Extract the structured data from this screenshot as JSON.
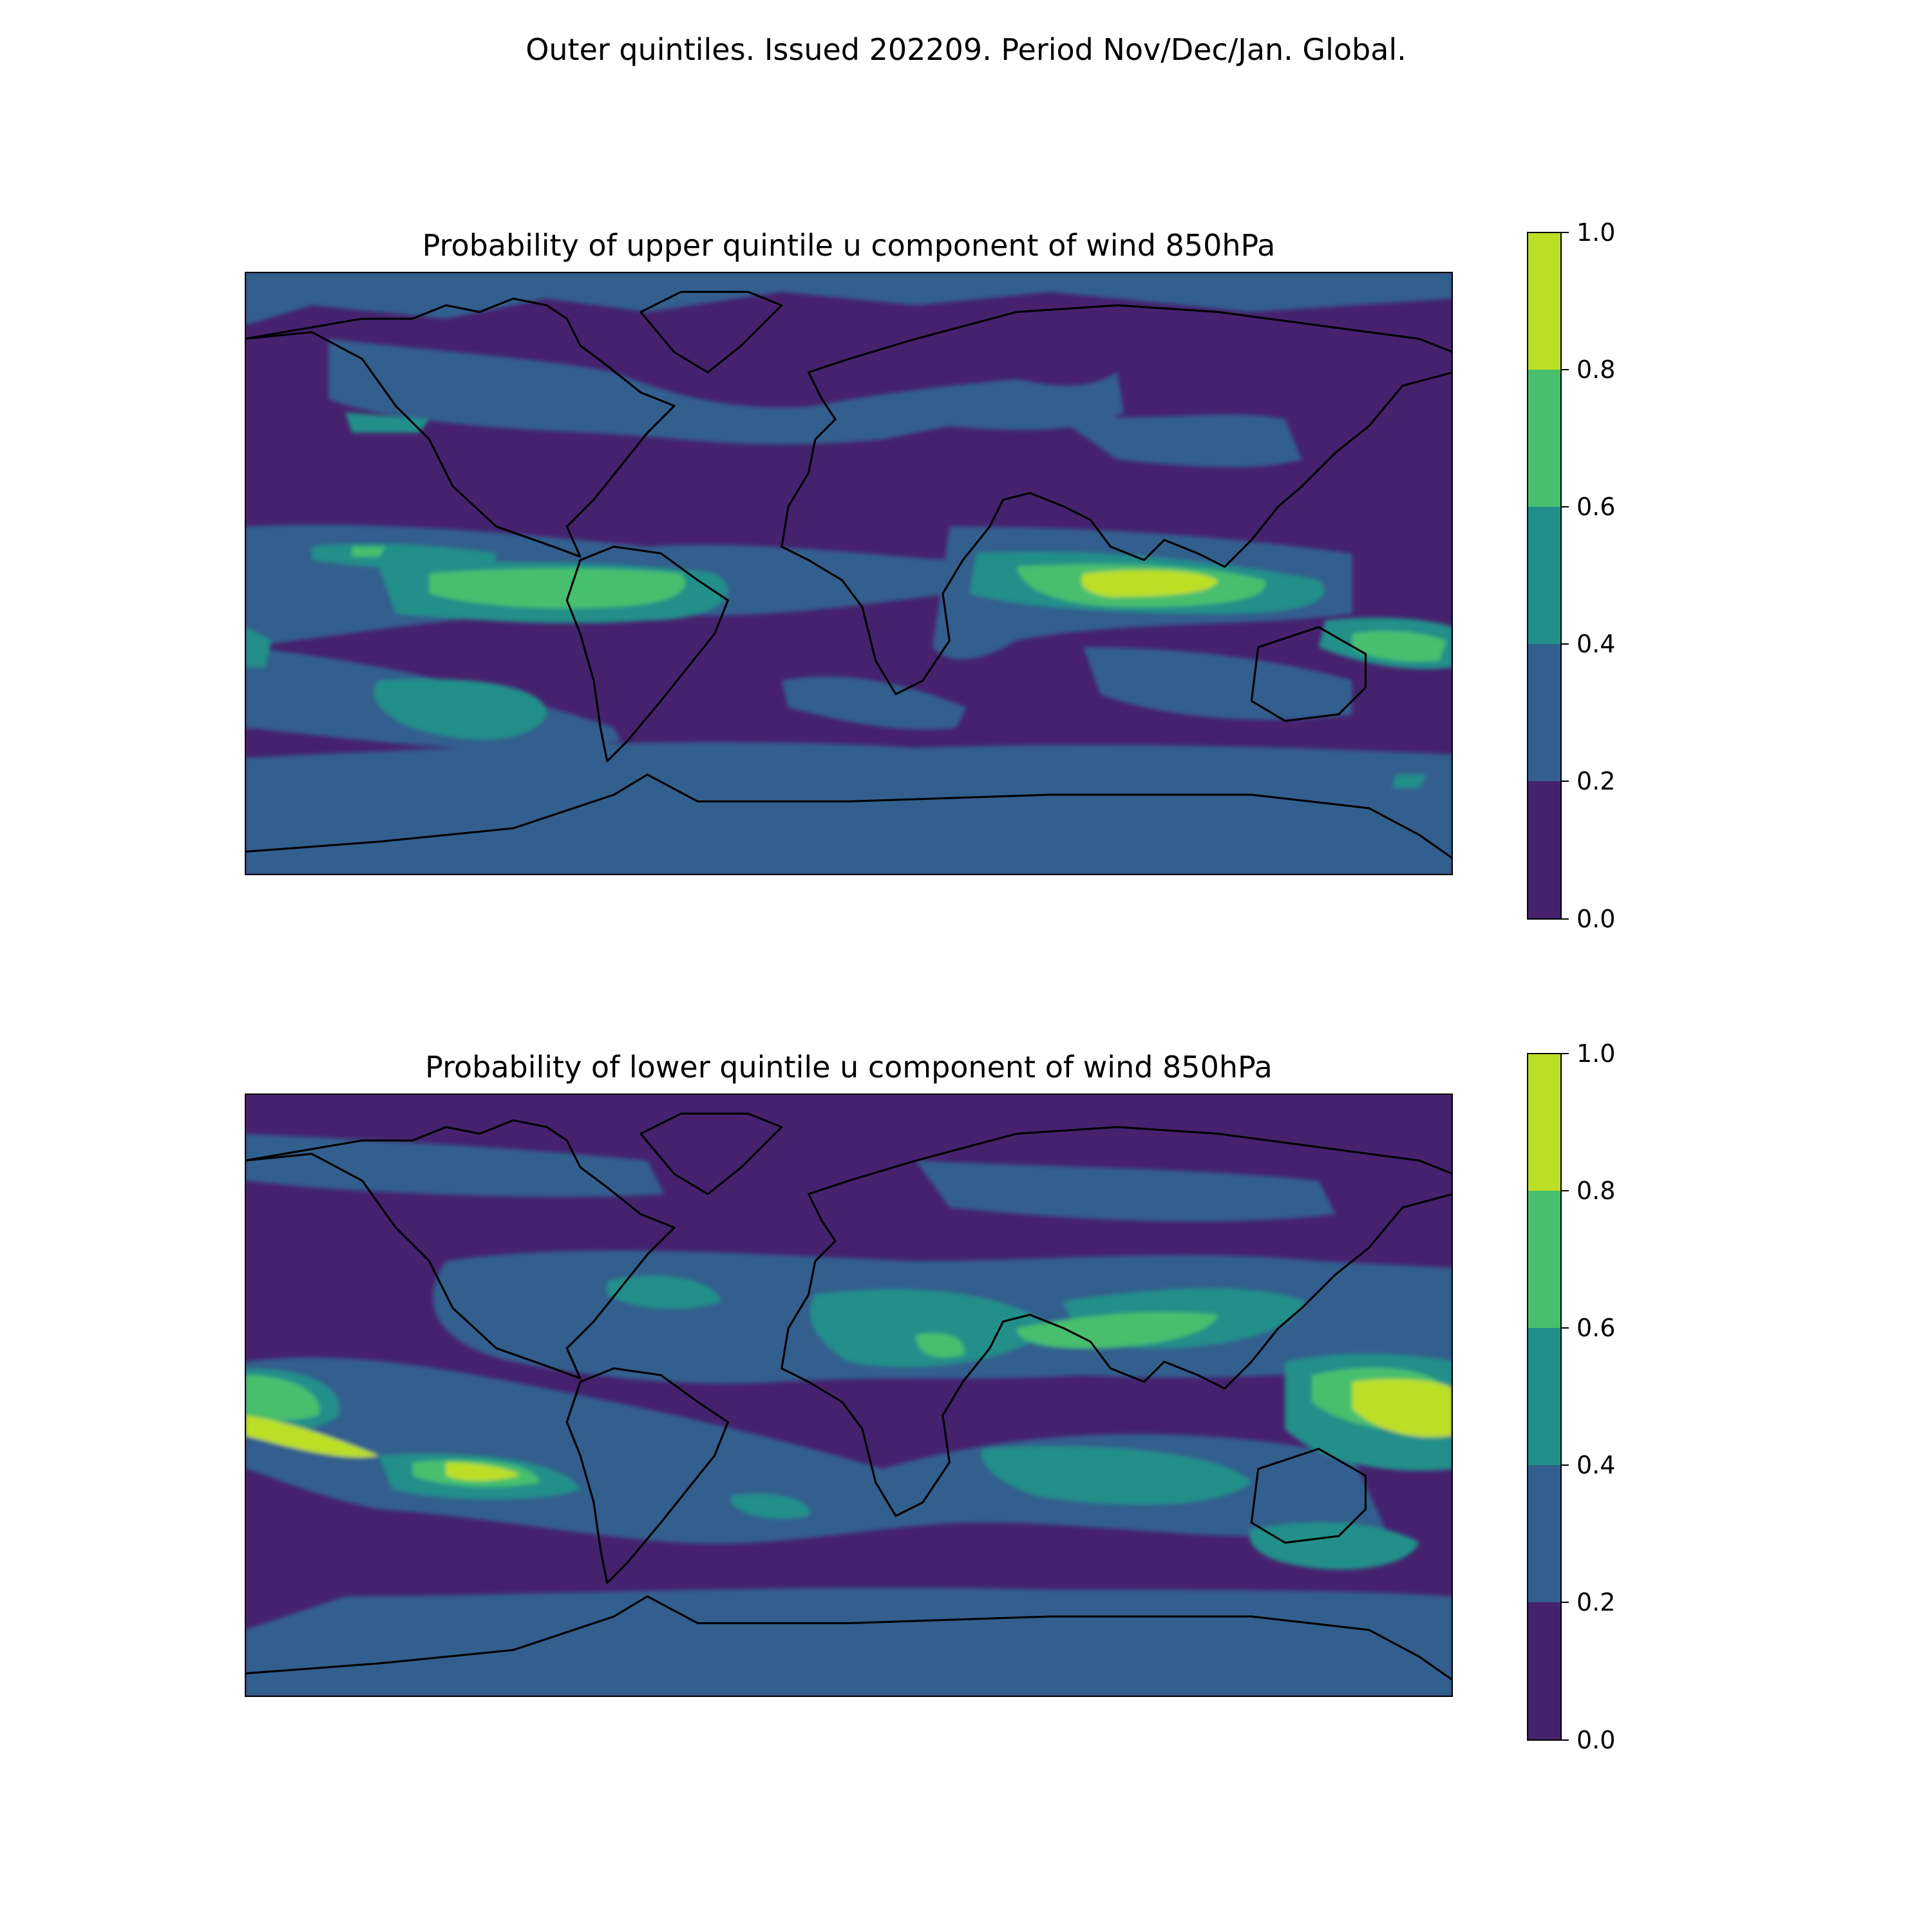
{
  "figure": {
    "title": "Outer quintiles. Issued 202209. Period Nov/Dec/Jan. Global."
  },
  "panels": [
    {
      "title": "Probability of upper quintile u component of wind 850hPa",
      "colorbar_ticks": [
        "0.0",
        "0.2",
        "0.4",
        "0.6",
        "0.8",
        "1.0"
      ]
    },
    {
      "title": "Probability of lower quintile u component of wind 850hPa",
      "colorbar_ticks": [
        "0.0",
        "0.2",
        "0.4",
        "0.6",
        "0.8",
        "1.0"
      ]
    }
  ],
  "colors": {
    "level_0": "#46226e",
    "level_1": "#325f8d",
    "level_2": "#218f8a",
    "level_3": "#47bf6d",
    "level_4": "#bcdf26",
    "coastline": "#000000"
  }
}
